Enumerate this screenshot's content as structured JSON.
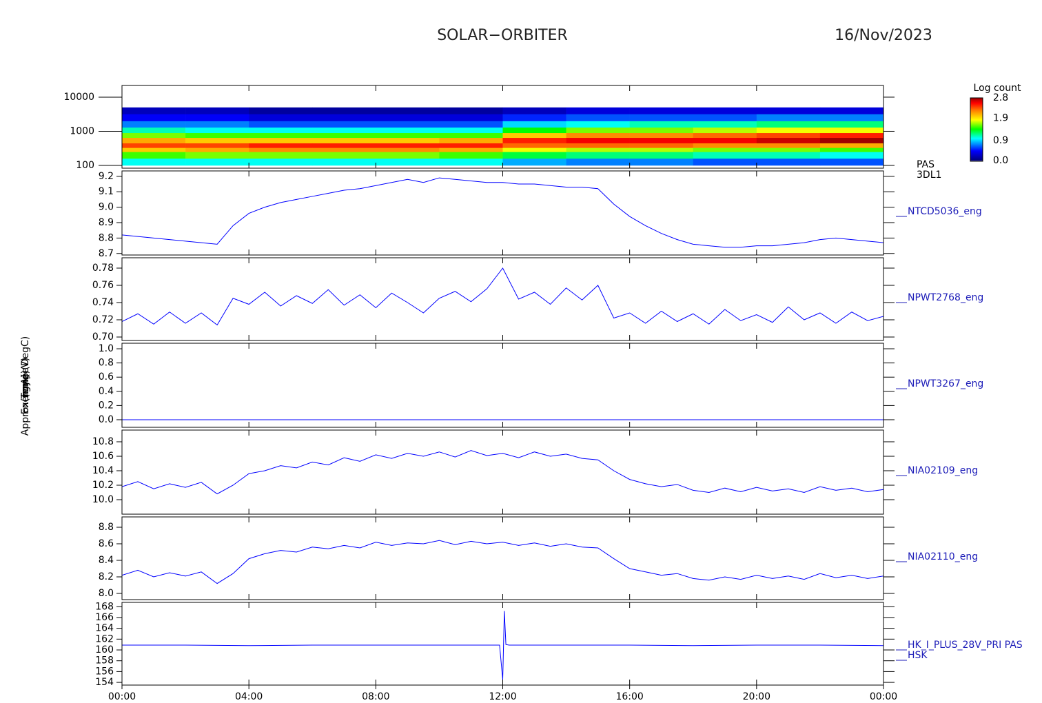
{
  "header": {
    "title": "SOLAR−ORBITER",
    "date": "16/Nov/2023"
  },
  "chart_data": [
    {
      "type": "heatmap",
      "ylabel": "Energy (eV)",
      "labels": [
        "PAS",
        "3DL1"
      ],
      "log_y": true,
      "x_bins": [
        0,
        2,
        4,
        6,
        8,
        10,
        12,
        14,
        16,
        18,
        20,
        22,
        24
      ],
      "y_bins": [
        100,
        160,
        250,
        330,
        450,
        650,
        900,
        1300,
        2000,
        3200,
        5000
      ],
      "z": [
        [
          1.0,
          1.5,
          2.0,
          2.4,
          2.1,
          1.6,
          1.1,
          0.7,
          0.4,
          0.2
        ],
        [
          1.0,
          1.6,
          2.1,
          2.4,
          2.0,
          1.5,
          1.0,
          0.7,
          0.4,
          0.2
        ],
        [
          1.0,
          1.6,
          2.2,
          2.5,
          2.0,
          1.5,
          1.0,
          0.6,
          0.3,
          0.1
        ],
        [
          1.0,
          1.6,
          2.2,
          2.5,
          2.0,
          1.5,
          1.0,
          0.6,
          0.3,
          0.1
        ],
        [
          1.0,
          1.6,
          2.2,
          2.5,
          2.0,
          1.5,
          1.0,
          0.6,
          0.3,
          0.1
        ],
        [
          1.0,
          1.5,
          2.1,
          2.5,
          2.1,
          1.5,
          1.0,
          0.6,
          0.3,
          0.1
        ],
        [
          0.8,
          1.3,
          1.8,
          2.3,
          2.5,
          2.0,
          1.4,
          0.9,
          0.5,
          0.2
        ],
        [
          0.7,
          1.2,
          1.7,
          2.3,
          2.6,
          2.2,
          1.6,
          1.0,
          0.6,
          0.3
        ],
        [
          0.7,
          1.2,
          1.7,
          2.3,
          2.6,
          2.2,
          1.6,
          1.1,
          0.6,
          0.3
        ],
        [
          0.6,
          1.1,
          1.6,
          2.2,
          2.6,
          2.3,
          1.7,
          1.1,
          0.6,
          0.3
        ],
        [
          0.6,
          1.1,
          1.6,
          2.2,
          2.7,
          2.4,
          1.8,
          1.2,
          0.7,
          0.3
        ],
        [
          0.6,
          1.0,
          1.5,
          2.1,
          2.8,
          2.5,
          1.8,
          1.2,
          0.7,
          0.3
        ]
      ],
      "xlim": [
        0,
        24
      ],
      "ylim": [
        83,
        22000
      ],
      "yticks": [
        100,
        1000,
        10000
      ],
      "colorbar_title": "Log count",
      "zlim": [
        0,
        2.8
      ],
      "zticks": [
        {
          "value": 0,
          "label": "0.0"
        },
        0.9,
        1.9,
        2.8
      ]
    },
    {
      "type": "line",
      "ylabel": "Approx Temp (DegC)",
      "labels": [
        "NTCD5036_eng"
      ],
      "color": "#0000ff",
      "x": [
        0,
        0.5,
        1,
        1.5,
        2,
        2.5,
        3,
        3.5,
        4,
        4.5,
        5,
        5.5,
        6,
        6.5,
        7,
        7.5,
        8,
        8.5,
        9,
        9.5,
        10,
        10.5,
        11,
        11.5,
        12,
        12.5,
        13,
        13.5,
        14,
        14.5,
        15,
        15.5,
        16,
        16.5,
        17,
        17.5,
        18,
        18.5,
        19,
        19.5,
        20,
        20.5,
        21,
        21.5,
        22,
        22.5,
        23,
        23.5,
        24
      ],
      "values": [
        8.82,
        8.81,
        8.8,
        8.79,
        8.78,
        8.77,
        8.76,
        8.88,
        8.96,
        9.0,
        9.03,
        9.05,
        9.07,
        9.09,
        9.11,
        9.12,
        9.14,
        9.16,
        9.18,
        9.16,
        9.19,
        9.18,
        9.17,
        9.16,
        9.16,
        9.15,
        9.15,
        9.14,
        9.13,
        9.13,
        9.12,
        9.02,
        8.94,
        8.88,
        8.83,
        8.79,
        8.76,
        8.75,
        8.74,
        8.74,
        8.75,
        8.75,
        8.76,
        8.77,
        8.79,
        8.8,
        8.79,
        8.78,
        8.77
      ],
      "xlim": [
        0,
        24
      ],
      "ylim": [
        8.69,
        9.235
      ],
      "yticks": [
        {
          "value": 8.7,
          "label": "8.7"
        },
        8.8,
        8.9,
        {
          "value": 9.0,
          "label": "9.0"
        },
        9.1,
        9.2
      ]
    },
    {
      "type": "line",
      "labels": [
        "NPWT2768_eng"
      ],
      "color": "#0000ff",
      "x": [
        0,
        0.5,
        1,
        1.5,
        2,
        2.5,
        3,
        3.5,
        4,
        4.5,
        5,
        5.5,
        6,
        6.5,
        7,
        7.5,
        8,
        8.5,
        9,
        9.5,
        10,
        10.5,
        11,
        11.5,
        12,
        12.5,
        13,
        13.5,
        14,
        14.5,
        15,
        15.5,
        16,
        16.5,
        17,
        17.5,
        18,
        18.5,
        19,
        19.5,
        20,
        20.5,
        21,
        21.5,
        22,
        22.5,
        23,
        23.5,
        24
      ],
      "values": [
        0.718,
        0.727,
        0.715,
        0.729,
        0.716,
        0.728,
        0.714,
        0.745,
        0.738,
        0.752,
        0.736,
        0.748,
        0.739,
        0.755,
        0.737,
        0.749,
        0.734,
        0.751,
        0.74,
        0.728,
        0.745,
        0.753,
        0.741,
        0.756,
        0.78,
        0.744,
        0.752,
        0.738,
        0.757,
        0.743,
        0.76,
        0.722,
        0.728,
        0.716,
        0.73,
        0.718,
        0.727,
        0.715,
        0.732,
        0.719,
        0.726,
        0.717,
        0.735,
        0.72,
        0.728,
        0.716,
        0.729,
        0.719,
        0.724
      ],
      "xlim": [
        0,
        24
      ],
      "ylim": [
        0.696,
        0.792
      ],
      "yticks": [
        {
          "value": 0.7,
          "label": "0.70"
        },
        0.72,
        0.74,
        0.76,
        0.78
      ]
    },
    {
      "type": "line",
      "labels": [
        "NPWT3267_eng"
      ],
      "color": "#0000ff",
      "x": [
        0,
        24
      ],
      "values": [
        0,
        0
      ],
      "xlim": [
        0,
        24
      ],
      "ylim": [
        -0.107,
        1.078
      ],
      "yticks": [
        {
          "value": 0,
          "label": "0.0"
        },
        0.2,
        0.4,
        0.6,
        0.8,
        {
          "value": 1,
          "label": "1.0"
        }
      ]
    },
    {
      "type": "line",
      "ylabel": "(none)",
      "labels": [
        "NIA02109_eng"
      ],
      "color": "#0000ff",
      "x": [
        0,
        0.5,
        1,
        1.5,
        2,
        2.5,
        3,
        3.5,
        4,
        4.5,
        5,
        5.5,
        6,
        6.5,
        7,
        7.5,
        8,
        8.5,
        9,
        9.5,
        10,
        10.5,
        11,
        11.5,
        12,
        12.5,
        13,
        13.5,
        14,
        14.5,
        15,
        15.5,
        16,
        16.5,
        17,
        17.5,
        18,
        18.5,
        19,
        19.5,
        20,
        20.5,
        21,
        21.5,
        22,
        22.5,
        23,
        23.5,
        24
      ],
      "values": [
        10.18,
        10.25,
        10.15,
        10.22,
        10.17,
        10.24,
        10.08,
        10.2,
        10.36,
        10.4,
        10.47,
        10.44,
        10.52,
        10.48,
        10.58,
        10.53,
        10.62,
        10.57,
        10.64,
        10.6,
        10.66,
        10.59,
        10.68,
        10.61,
        10.64,
        10.58,
        10.66,
        10.6,
        10.63,
        10.57,
        10.55,
        10.4,
        10.28,
        10.22,
        10.18,
        10.21,
        10.13,
        10.1,
        10.16,
        10.11,
        10.17,
        10.12,
        10.15,
        10.1,
        10.18,
        10.13,
        10.16,
        10.11,
        10.14
      ],
      "xlim": [
        0,
        24
      ],
      "ylim": [
        9.8,
        10.962
      ],
      "yticks": [
        {
          "value": 10.0,
          "label": "10.0"
        },
        10.2,
        10.4,
        10.6,
        10.8
      ]
    },
    {
      "type": "line",
      "labels": [
        "NIA02110_eng"
      ],
      "color": "#0000ff",
      "x": [
        0,
        0.5,
        1,
        1.5,
        2,
        2.5,
        3,
        3.5,
        4,
        4.5,
        5,
        5.5,
        6,
        6.5,
        7,
        7.5,
        8,
        8.5,
        9,
        9.5,
        10,
        10.5,
        11,
        11.5,
        12,
        12.5,
        13,
        13.5,
        14,
        14.5,
        15,
        15.5,
        16,
        16.5,
        17,
        17.5,
        18,
        18.5,
        19,
        19.5,
        20,
        20.5,
        21,
        21.5,
        22,
        22.5,
        23,
        23.5,
        24
      ],
      "values": [
        8.22,
        8.28,
        8.2,
        8.25,
        8.21,
        8.26,
        8.12,
        8.24,
        8.42,
        8.48,
        8.52,
        8.5,
        8.56,
        8.54,
        8.58,
        8.55,
        8.62,
        8.58,
        8.61,
        8.6,
        8.64,
        8.59,
        8.63,
        8.6,
        8.62,
        8.58,
        8.61,
        8.57,
        8.6,
        8.56,
        8.55,
        8.42,
        8.3,
        8.26,
        8.22,
        8.24,
        8.18,
        8.16,
        8.2,
        8.17,
        8.22,
        8.18,
        8.21,
        8.17,
        8.24,
        8.19,
        8.22,
        8.18,
        8.21
      ],
      "xlim": [
        0,
        24
      ],
      "ylim": [
        7.925,
        8.925
      ],
      "yticks": [
        {
          "value": 8.0,
          "label": "8.0"
        },
        8.2,
        8.4,
        8.6,
        8.8
      ]
    },
    {
      "type": "line",
      "ylabel": "(mA)",
      "labels": [
        "HK_I_PLUS_28V_PRI PAS",
        "HSK"
      ],
      "color": "#0000ff",
      "x": [
        0,
        2,
        4,
        6,
        8,
        10,
        11.9,
        12.0,
        12.05,
        12.1,
        12.2,
        14,
        16,
        18,
        20,
        22,
        24
      ],
      "values": [
        160.9,
        160.9,
        160.8,
        160.9,
        160.9,
        160.9,
        160.9,
        154.5,
        167.2,
        161.0,
        160.9,
        160.9,
        160.9,
        160.8,
        160.9,
        160.9,
        160.8
      ],
      "xlim": [
        0,
        24
      ],
      "ylim": [
        153.5,
        168.8
      ],
      "yticks": [
        154,
        156,
        158,
        160,
        162,
        164,
        166,
        168
      ],
      "xticks": [
        {
          "value": 0,
          "label": "00:00"
        },
        {
          "value": 4,
          "label": "04:00"
        },
        {
          "value": 8,
          "label": "08:00"
        },
        {
          "value": 12,
          "label": "12:00"
        },
        {
          "value": 16,
          "label": "16:00"
        },
        {
          "value": 20,
          "label": "20:00"
        },
        {
          "value": 24,
          "label": "00:00"
        }
      ]
    }
  ]
}
